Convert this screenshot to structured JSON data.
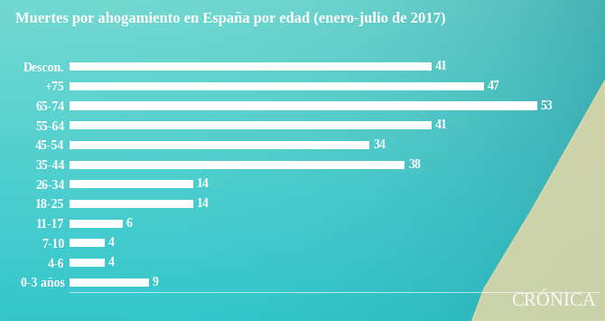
{
  "chart_data": {
    "type": "bar",
    "orientation": "horizontal",
    "title": "Muertes por ahogamiento en España por edad (enero-julio de 2017)",
    "categories": [
      "Descon.",
      "+75",
      "65-74",
      "55-64",
      "45-54",
      "35-44",
      "26-34",
      "18-25",
      "11-17",
      "7-10",
      "4-6",
      "0-3 años"
    ],
    "values": [
      41,
      47,
      53,
      41,
      34,
      38,
      14,
      14,
      6,
      4,
      4,
      9
    ],
    "color": "#ffffff",
    "xlim": [
      0,
      60
    ],
    "xticks": [],
    "data_labels": true,
    "tick_labels": "y",
    "grid": false,
    "annotations": [
      "CRÓNICA"
    ]
  }
}
